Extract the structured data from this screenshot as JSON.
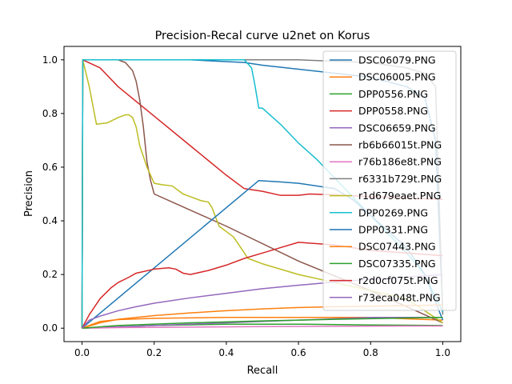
{
  "chart_data": {
    "type": "line",
    "title": "Precision-Recal curve u2net on Korus",
    "xlabel": "Recall",
    "ylabel": "Precision",
    "xlim": [
      -0.05,
      1.05
    ],
    "ylim": [
      -0.05,
      1.05
    ],
    "grid": false,
    "legend_position": "top-right",
    "xticks": [
      "0.0",
      "0.2",
      "0.4",
      "0.6",
      "0.8",
      "1.0"
    ],
    "yticks": [
      "0.0",
      "0.2",
      "0.4",
      "0.6",
      "0.8",
      "1.0"
    ],
    "series": [
      {
        "name": "DSC06079.PNG",
        "color": "#1f77b4",
        "points": [
          [
            0,
            1.0
          ],
          [
            0.1,
            1.0
          ],
          [
            0.3,
            1.0
          ],
          [
            0.45,
            0.99
          ],
          [
            0.5,
            0.98
          ],
          [
            0.6,
            0.965
          ],
          [
            0.7,
            0.95
          ],
          [
            0.8,
            0.935
          ],
          [
            0.9,
            0.9
          ],
          [
            0.95,
            0.86
          ],
          [
            0.98,
            0.7
          ],
          [
            1.0,
            0.06
          ]
        ]
      },
      {
        "name": "DSC06005.PNG",
        "color": "#ff7f0e",
        "points": [
          [
            0,
            0.0
          ],
          [
            0.05,
            0.025
          ],
          [
            0.1,
            0.032
          ],
          [
            0.2,
            0.037
          ],
          [
            0.4,
            0.04
          ],
          [
            0.6,
            0.04
          ],
          [
            0.8,
            0.04
          ],
          [
            1.0,
            0.03
          ]
        ]
      },
      {
        "name": "DPP0556.PNG",
        "color": "#2ca02c",
        "points": [
          [
            0,
            0.0
          ],
          [
            0.2,
            0.01
          ],
          [
            0.4,
            0.015
          ],
          [
            0.6,
            0.015
          ],
          [
            0.8,
            0.012
          ],
          [
            1.0,
            0.01
          ]
        ]
      },
      {
        "name": "DPP0558.PNG",
        "color": "#d62728",
        "points": [
          [
            0,
            0.0
          ],
          [
            0.002,
            1.0
          ],
          [
            0.05,
            0.97
          ],
          [
            0.1,
            0.9
          ],
          [
            0.2,
            0.79
          ],
          [
            0.3,
            0.68
          ],
          [
            0.4,
            0.57
          ],
          [
            0.45,
            0.52
          ],
          [
            0.5,
            0.51
          ],
          [
            0.55,
            0.495
          ],
          [
            0.6,
            0.495
          ],
          [
            0.63,
            0.5
          ],
          [
            0.7,
            0.497
          ],
          [
            0.8,
            0.49
          ],
          [
            0.9,
            0.485
          ],
          [
            1.0,
            0.48
          ]
        ]
      },
      {
        "name": "DSC06659.PNG",
        "color": "#9467bd",
        "points": [
          [
            0,
            0.0
          ],
          [
            0.2,
            0.01
          ],
          [
            0.4,
            0.02
          ],
          [
            0.6,
            0.03
          ],
          [
            0.8,
            0.04
          ],
          [
            1.0,
            0.04
          ]
        ]
      },
      {
        "name": "rb6b66015t.PNG",
        "color": "#8c564b",
        "points": [
          [
            0,
            0.0
          ],
          [
            0.002,
            1.0
          ],
          [
            0.1,
            1.0
          ],
          [
            0.12,
            0.99
          ],
          [
            0.14,
            0.96
          ],
          [
            0.15,
            0.92
          ],
          [
            0.16,
            0.85
          ],
          [
            0.17,
            0.75
          ],
          [
            0.18,
            0.62
          ],
          [
            0.19,
            0.55
          ],
          [
            0.2,
            0.5
          ],
          [
            0.4,
            0.38
          ],
          [
            0.6,
            0.25
          ],
          [
            0.8,
            0.14
          ],
          [
            1.0,
            0.02
          ]
        ]
      },
      {
        "name": "r76b186e8t.PNG",
        "color": "#e377c2",
        "points": [
          [
            0,
            0.0
          ],
          [
            0.1,
            0.002
          ],
          [
            0.3,
            0.004
          ],
          [
            0.5,
            0.006
          ],
          [
            0.7,
            0.007
          ],
          [
            0.9,
            0.008
          ],
          [
            1.0,
            0.008
          ]
        ]
      },
      {
        "name": "r6331b729t.PNG",
        "color": "#7f7f7f",
        "points": [
          [
            0,
            0.0
          ],
          [
            0.002,
            1.0
          ],
          [
            0.3,
            1.0
          ],
          [
            0.5,
            1.0
          ],
          [
            0.6,
            1.0
          ],
          [
            0.7,
            0.995
          ],
          [
            0.8,
            0.99
          ],
          [
            0.9,
            0.97
          ],
          [
            0.95,
            0.95
          ],
          [
            0.98,
            0.9
          ],
          [
            1.0,
            0.05
          ]
        ]
      },
      {
        "name": "r1d679eaet.PNG",
        "color": "#bcbd22",
        "points": [
          [
            0,
            0.0
          ],
          [
            0.002,
            1.0
          ],
          [
            0.02,
            0.9
          ],
          [
            0.04,
            0.76
          ],
          [
            0.07,
            0.765
          ],
          [
            0.1,
            0.785
          ],
          [
            0.12,
            0.795
          ],
          [
            0.13,
            0.795
          ],
          [
            0.14,
            0.785
          ],
          [
            0.15,
            0.75
          ],
          [
            0.16,
            0.68
          ],
          [
            0.18,
            0.6
          ],
          [
            0.2,
            0.54
          ],
          [
            0.22,
            0.535
          ],
          [
            0.25,
            0.53
          ],
          [
            0.28,
            0.5
          ],
          [
            0.3,
            0.49
          ],
          [
            0.33,
            0.475
          ],
          [
            0.35,
            0.47
          ],
          [
            0.36,
            0.45
          ],
          [
            0.38,
            0.38
          ],
          [
            0.42,
            0.34
          ],
          [
            0.44,
            0.3
          ],
          [
            0.46,
            0.26
          ],
          [
            0.5,
            0.24
          ],
          [
            0.6,
            0.2
          ],
          [
            0.7,
            0.17
          ],
          [
            0.8,
            0.14
          ],
          [
            0.9,
            0.11
          ],
          [
            1.0,
            0.02
          ]
        ]
      },
      {
        "name": "DPP0269.PNG",
        "color": "#17becf",
        "points": [
          [
            0,
            0.0
          ],
          [
            0.002,
            1.0
          ],
          [
            0.1,
            1.0
          ],
          [
            0.3,
            1.0
          ],
          [
            0.45,
            1.0
          ],
          [
            0.47,
            0.97
          ],
          [
            0.48,
            0.9
          ],
          [
            0.49,
            0.82
          ],
          [
            0.5,
            0.82
          ],
          [
            0.55,
            0.76
          ],
          [
            0.6,
            0.69
          ],
          [
            0.65,
            0.63
          ],
          [
            0.7,
            0.56
          ],
          [
            0.75,
            0.49
          ],
          [
            0.8,
            0.42
          ],
          [
            0.85,
            0.35
          ],
          [
            0.9,
            0.28
          ],
          [
            0.95,
            0.2
          ],
          [
            1.0,
            0.06
          ]
        ]
      },
      {
        "name": "DPP0331.PNG",
        "color": "#1f77b4",
        "points": [
          [
            0,
            0.0
          ],
          [
            0.49,
            0.55
          ],
          [
            0.55,
            0.545
          ],
          [
            0.6,
            0.54
          ],
          [
            0.7,
            0.52
          ],
          [
            0.75,
            0.48
          ],
          [
            0.8,
            0.42
          ],
          [
            0.9,
            0.3
          ],
          [
            0.95,
            0.2
          ],
          [
            1.0,
            0.03
          ]
        ]
      },
      {
        "name": "DSC07443.PNG",
        "color": "#ff7f0e",
        "points": [
          [
            0,
            0.0
          ],
          [
            0.05,
            0.02
          ],
          [
            0.1,
            0.033
          ],
          [
            0.2,
            0.047
          ],
          [
            0.3,
            0.057
          ],
          [
            0.4,
            0.065
          ],
          [
            0.5,
            0.072
          ],
          [
            0.6,
            0.077
          ],
          [
            0.7,
            0.08
          ],
          [
            0.8,
            0.082
          ],
          [
            0.9,
            0.084
          ],
          [
            1.0,
            0.086
          ]
        ]
      },
      {
        "name": "DSC07335.PNG",
        "color": "#2ca02c",
        "points": [
          [
            0,
            0.0
          ],
          [
            0.1,
            0.01
          ],
          [
            0.3,
            0.02
          ],
          [
            0.5,
            0.027
          ],
          [
            0.7,
            0.033
          ],
          [
            0.9,
            0.038
          ],
          [
            1.0,
            0.04
          ]
        ]
      },
      {
        "name": "r2d0cf075t.PNG",
        "color": "#d62728",
        "points": [
          [
            0,
            0.0
          ],
          [
            0.02,
            0.05
          ],
          [
            0.05,
            0.11
          ],
          [
            0.08,
            0.15
          ],
          [
            0.1,
            0.17
          ],
          [
            0.13,
            0.19
          ],
          [
            0.15,
            0.205
          ],
          [
            0.2,
            0.22
          ],
          [
            0.24,
            0.225
          ],
          [
            0.26,
            0.22
          ],
          [
            0.28,
            0.205
          ],
          [
            0.3,
            0.2
          ],
          [
            0.35,
            0.215
          ],
          [
            0.4,
            0.235
          ],
          [
            0.45,
            0.26
          ],
          [
            0.5,
            0.28
          ],
          [
            0.55,
            0.3
          ],
          [
            0.6,
            0.32
          ],
          [
            0.65,
            0.315
          ],
          [
            0.7,
            0.31
          ],
          [
            0.75,
            0.3
          ],
          [
            0.8,
            0.29
          ],
          [
            0.9,
            0.28
          ],
          [
            1.0,
            0.27
          ]
        ]
      },
      {
        "name": "r73eca048t.PNG",
        "color": "#9467bd",
        "points": [
          [
            0,
            0.0
          ],
          [
            0.02,
            0.03
          ],
          [
            0.05,
            0.045
          ],
          [
            0.1,
            0.065
          ],
          [
            0.15,
            0.08
          ],
          [
            0.2,
            0.093
          ],
          [
            0.3,
            0.113
          ],
          [
            0.4,
            0.13
          ],
          [
            0.5,
            0.147
          ],
          [
            0.6,
            0.16
          ],
          [
            0.7,
            0.172
          ],
          [
            0.8,
            0.182
          ],
          [
            0.9,
            0.19
          ],
          [
            1.0,
            0.2
          ]
        ]
      }
    ]
  }
}
